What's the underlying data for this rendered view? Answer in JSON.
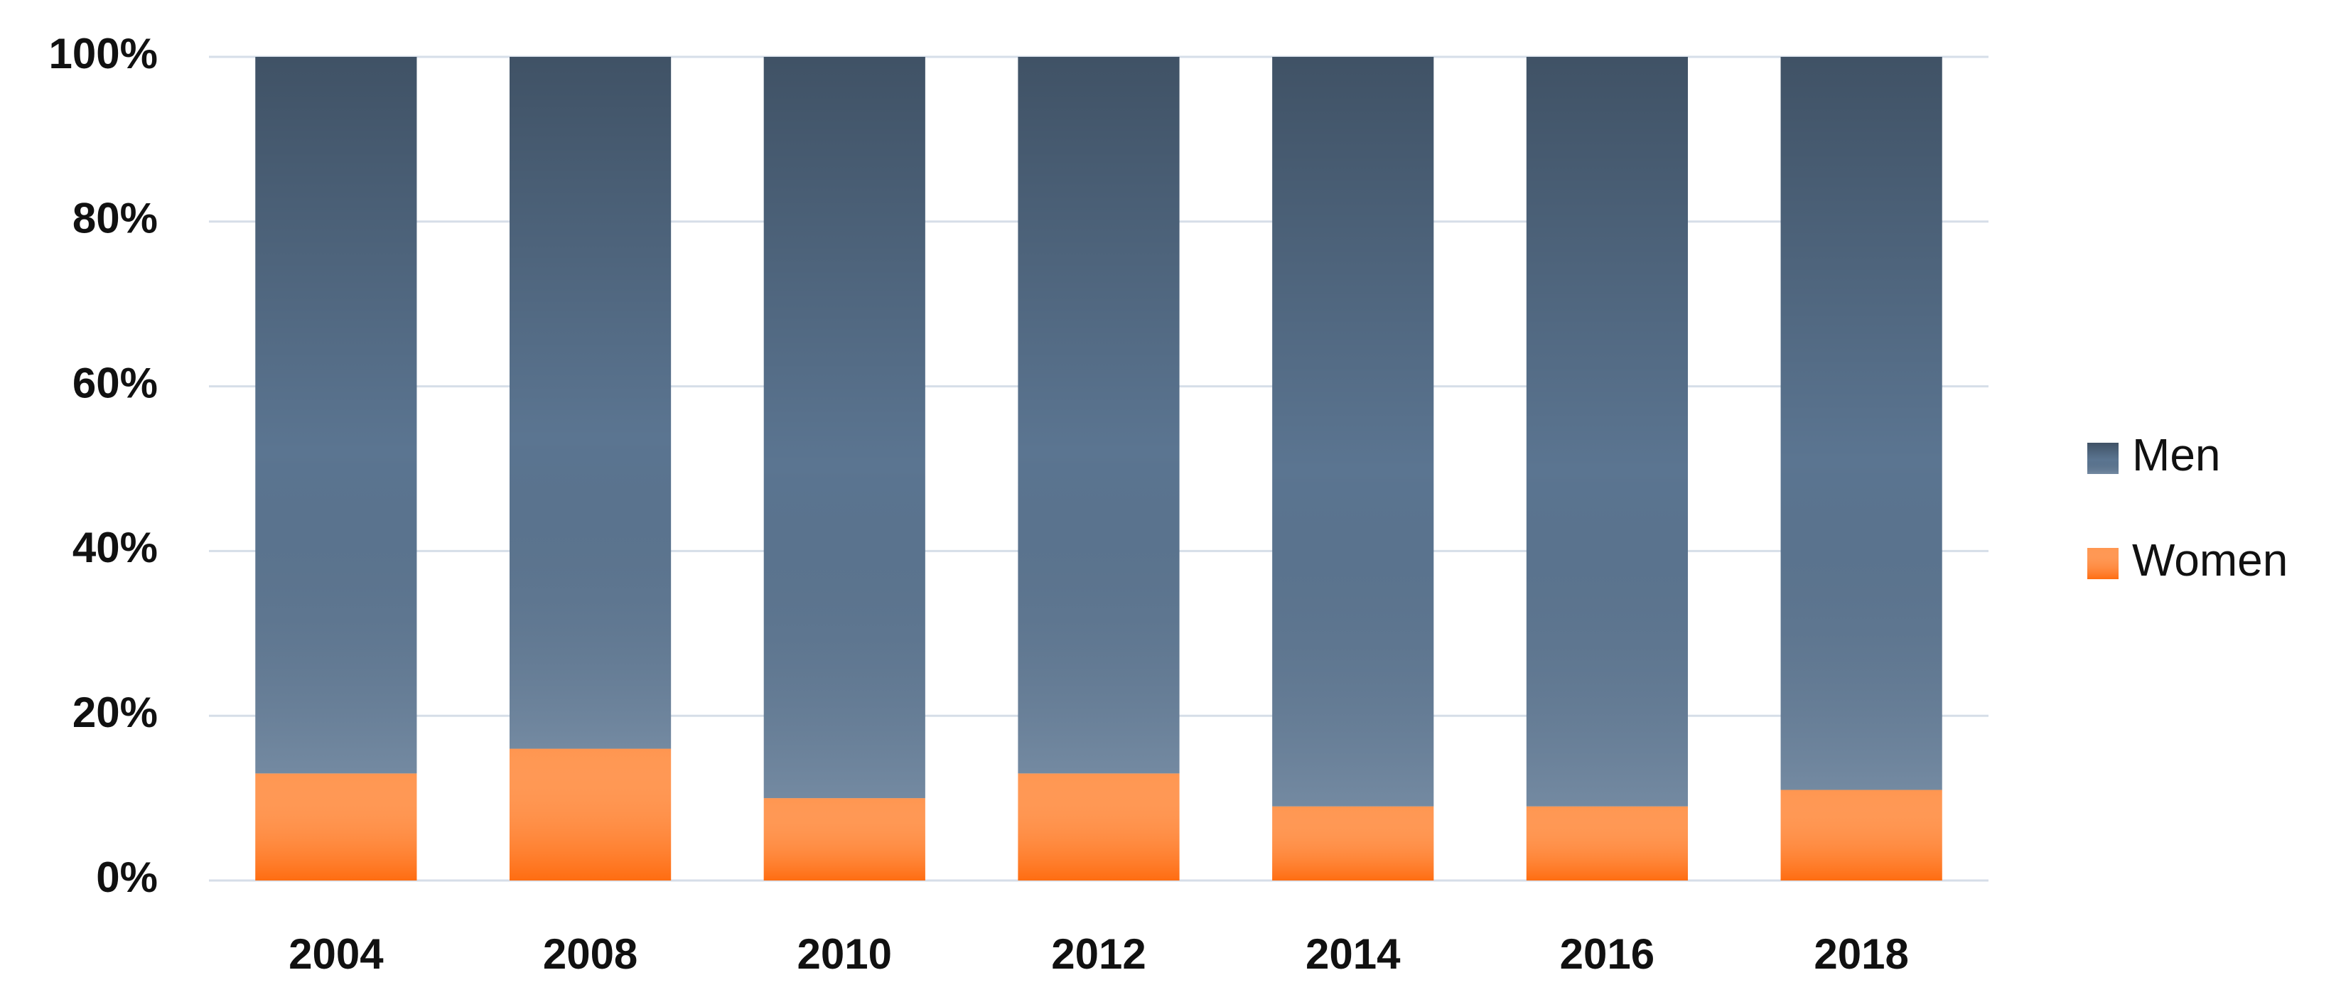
{
  "chart_data": {
    "type": "stacked_bar",
    "categories": [
      "2004",
      "2008",
      "2010",
      "2012",
      "2014",
      "2016",
      "2018"
    ],
    "series": [
      {
        "name": "Women",
        "color": "#ff7f2a",
        "values": [
          13,
          16,
          10,
          13,
          9,
          9,
          11
        ]
      },
      {
        "name": "Men",
        "color": "#5b7591",
        "values": [
          87,
          84,
          90,
          87,
          91,
          91,
          89
        ]
      }
    ],
    "ylim": [
      0,
      100
    ],
    "yticks": [
      {
        "value": 0,
        "label": "0%"
      },
      {
        "value": 20,
        "label": "20%"
      },
      {
        "value": 40,
        "label": "40%"
      },
      {
        "value": 60,
        "label": "60%"
      },
      {
        "value": 80,
        "label": "80%"
      },
      {
        "value": 100,
        "label": "100%"
      }
    ],
    "grid": true,
    "legend": "right"
  }
}
